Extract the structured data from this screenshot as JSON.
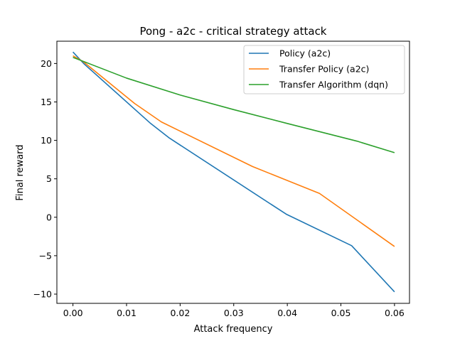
{
  "chart_data": {
    "type": "line",
    "title": "Pong - a2c - critical strategy attack",
    "xlabel": "Attack frequency",
    "ylabel": "Final reward",
    "xlim": [
      -0.003,
      0.0628
    ],
    "ylim": [
      -11.2,
      22.9
    ],
    "xticks": [
      0.0,
      0.01,
      0.02,
      0.03,
      0.04,
      0.05,
      0.06
    ],
    "xtick_labels": [
      "0.00",
      "0.01",
      "0.02",
      "0.03",
      "0.04",
      "0.05",
      "0.06"
    ],
    "yticks": [
      -10,
      -5,
      0,
      5,
      10,
      15,
      20
    ],
    "ytick_labels": [
      "−10",
      "−5",
      "0",
      "5",
      "10",
      "15",
      "20"
    ],
    "grid": false,
    "legend_position": "top-right",
    "series": [
      {
        "name": "Policy (a2c)",
        "color": "#1f77b4",
        "x": [
          0.0,
          0.002,
          0.0145,
          0.018,
          0.0398,
          0.052,
          0.06
        ],
        "y": [
          21.5,
          20.0,
          12.2,
          10.3,
          0.4,
          -3.7,
          -9.7
        ]
      },
      {
        "name": "Transfer Policy (a2c)",
        "color": "#ff7f0e",
        "x": [
          0.0,
          0.002,
          0.0115,
          0.0165,
          0.0335,
          0.046,
          0.06
        ],
        "y": [
          21.0,
          20.2,
          14.8,
          12.4,
          6.6,
          3.1,
          -3.8
        ]
      },
      {
        "name": "Transfer Algorithm (dqn)",
        "color": "#2ca02c",
        "x": [
          0.0,
          0.01,
          0.02,
          0.03,
          0.04,
          0.053,
          0.06
        ],
        "y": [
          20.8,
          18.1,
          15.9,
          14.0,
          12.2,
          9.9,
          8.4
        ]
      }
    ]
  }
}
